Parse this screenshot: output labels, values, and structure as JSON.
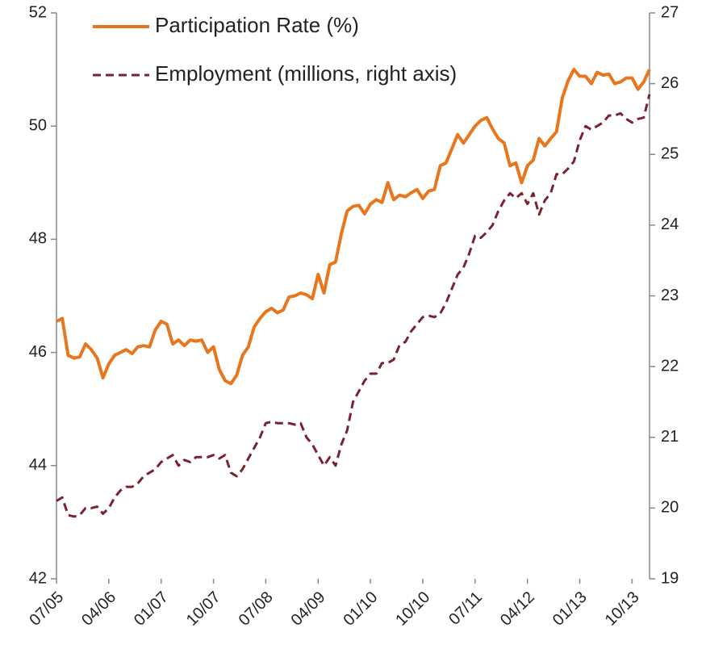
{
  "chart_data": {
    "type": "line",
    "categories": [
      "07/05",
      null,
      null,
      null,
      null,
      null,
      null,
      null,
      null,
      "04/06",
      null,
      null,
      null,
      null,
      null,
      null,
      null,
      null,
      "01/07",
      null,
      null,
      null,
      null,
      null,
      null,
      null,
      null,
      "10/07",
      null,
      null,
      null,
      null,
      null,
      null,
      null,
      null,
      "07/08",
      null,
      null,
      null,
      null,
      null,
      null,
      null,
      null,
      "04/09",
      null,
      null,
      null,
      null,
      null,
      null,
      null,
      null,
      "01/10",
      null,
      null,
      null,
      null,
      null,
      null,
      null,
      null,
      "10/10",
      null,
      null,
      null,
      null,
      null,
      null,
      null,
      null,
      "07/11",
      null,
      null,
      null,
      null,
      null,
      null,
      null,
      null,
      "04/12",
      null,
      null,
      null,
      null,
      null,
      null,
      null,
      null,
      "01/13",
      null,
      null,
      null,
      null,
      null,
      null,
      null,
      null,
      "10/13",
      null,
      null,
      null
    ],
    "series": [
      {
        "name": "Participation Rate (%)",
        "color": "#e8761e",
        "dash": false,
        "values": [
          46.55,
          46.6,
          45.95,
          45.9,
          45.92,
          46.15,
          46.05,
          45.9,
          45.55,
          45.8,
          45.95,
          46.0,
          46.05,
          45.98,
          46.1,
          46.12,
          46.1,
          46.4,
          46.55,
          46.5,
          46.15,
          46.22,
          46.12,
          46.22,
          46.2,
          46.22,
          46.0,
          46.1,
          45.7,
          45.5,
          45.45,
          45.6,
          45.95,
          46.1,
          46.45,
          46.6,
          46.72,
          46.78,
          46.7,
          46.75,
          46.98,
          47.0,
          47.05,
          47.02,
          46.95,
          47.38,
          47.05,
          47.55,
          47.6,
          48.1,
          48.5,
          48.58,
          48.6,
          48.45,
          48.62,
          48.7,
          48.65,
          49.0,
          48.7,
          48.78,
          48.75,
          48.82,
          48.88,
          48.72,
          48.85,
          48.88,
          49.3,
          49.35,
          49.6,
          49.85,
          49.7,
          49.85,
          50.0,
          50.1,
          50.15,
          49.95,
          49.78,
          49.7,
          49.3,
          49.35,
          49.0,
          49.3,
          49.4,
          49.78,
          49.65,
          49.78,
          49.9,
          50.5,
          50.8,
          51.0,
          50.88,
          50.88,
          50.75,
          50.95,
          50.9,
          50.92,
          50.75,
          50.78,
          50.85,
          50.85,
          50.65,
          50.78,
          51.0
        ]
      },
      {
        "name": "Employment (millions, right axis)",
        "color": "#7b2232",
        "dash": true,
        "axis": "y2",
        "values": [
          20.1,
          20.15,
          19.9,
          19.88,
          19.9,
          20.0,
          20.0,
          20.02,
          19.92,
          20.0,
          20.15,
          20.25,
          20.3,
          20.3,
          20.35,
          20.45,
          20.5,
          20.55,
          20.65,
          20.7,
          20.75,
          20.6,
          20.68,
          20.65,
          20.72,
          20.72,
          20.72,
          20.75,
          20.7,
          20.75,
          20.5,
          20.45,
          20.55,
          20.7,
          20.85,
          21.0,
          21.2,
          21.22,
          21.2,
          21.2,
          21.2,
          21.18,
          21.2,
          21.0,
          20.9,
          20.75,
          20.6,
          20.72,
          20.6,
          20.9,
          21.1,
          21.5,
          21.65,
          21.8,
          21.9,
          21.9,
          22.05,
          22.05,
          22.1,
          22.3,
          22.35,
          22.5,
          22.6,
          22.7,
          22.72,
          22.7,
          22.75,
          22.9,
          23.1,
          23.3,
          23.4,
          23.6,
          23.85,
          23.82,
          23.9,
          24.0,
          24.2,
          24.35,
          24.45,
          24.38,
          24.45,
          24.3,
          24.45,
          24.15,
          24.35,
          24.45,
          24.72,
          24.72,
          24.8,
          24.9,
          25.2,
          25.4,
          25.35,
          25.4,
          25.45,
          25.55,
          25.55,
          25.58,
          25.5,
          25.45,
          25.5,
          25.52,
          25.85
        ]
      }
    ],
    "ylim": [
      42,
      52
    ],
    "yticks": [
      42,
      44,
      46,
      48,
      50,
      52
    ],
    "y2lim": [
      19,
      27
    ],
    "y2ticks": [
      19,
      20,
      21,
      22,
      23,
      24,
      25,
      26,
      27
    ],
    "grid": false
  }
}
